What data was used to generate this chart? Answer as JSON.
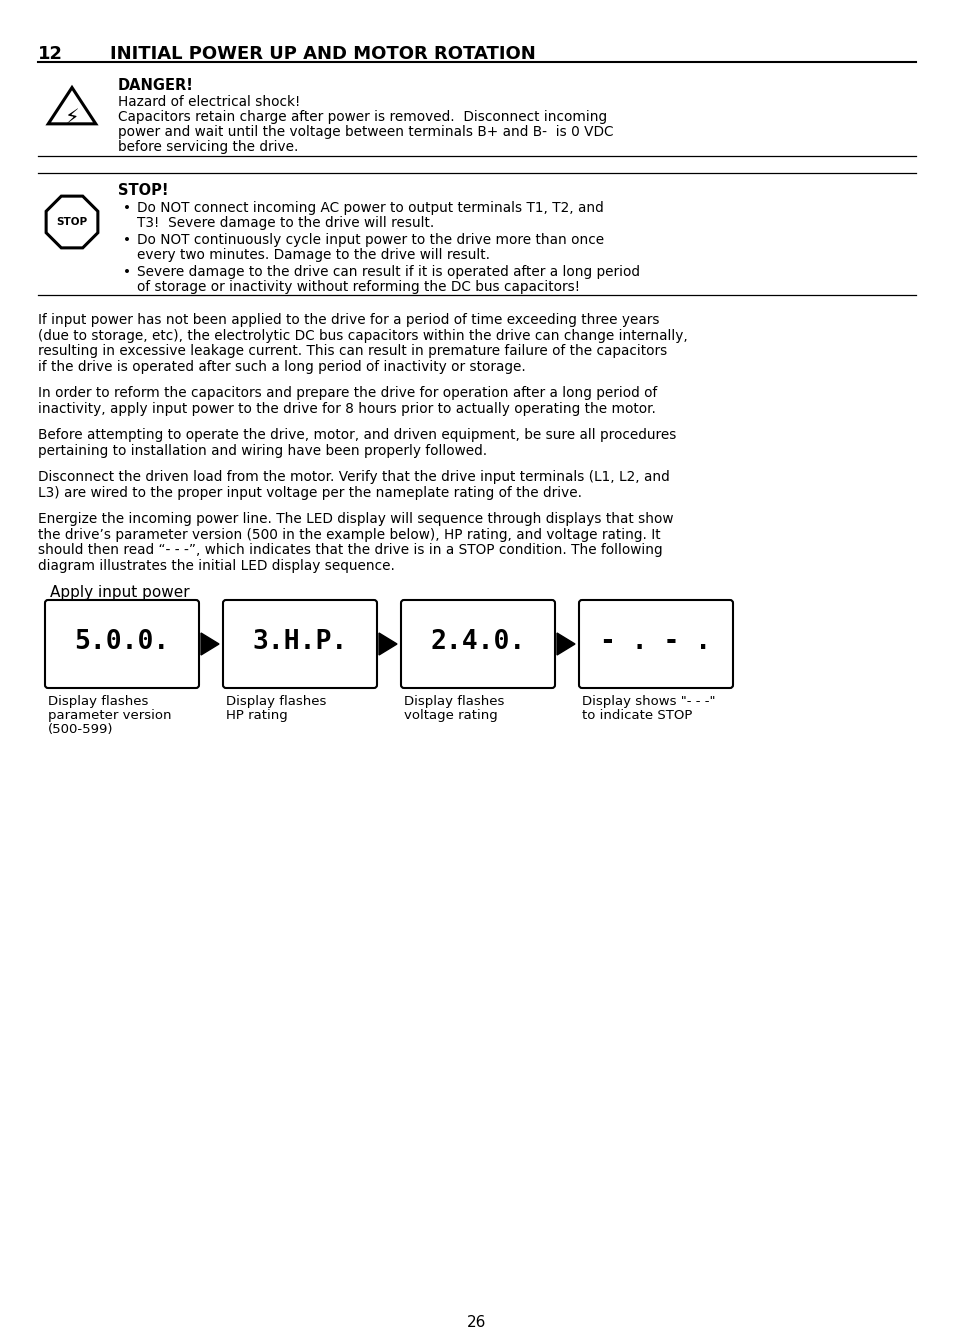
{
  "title_num": "12",
  "title_text": "INITIAL POWER UP AND MOTOR ROTATION",
  "danger_label": "DANGER!",
  "danger_line1": "Hazard of electrical shock!",
  "danger_line2": "Capacitors retain charge after power is removed.  Disconnect incoming",
  "danger_line3": "power and wait until the voltage between terminals B+ and B-  is 0 VDC",
  "danger_line4": "before servicing the drive.",
  "stop_label": "STOP!",
  "stop_b1l1": "Do NOT connect incoming AC power to output terminals T1, T2, and",
  "stop_b1l2": "T3!  Severe damage to the drive will result.",
  "stop_b2l1": "Do NOT continuously cycle input power to the drive more than once",
  "stop_b2l2": "every two minutes. Damage to the drive will result.",
  "stop_b3l1": "Severe damage to the drive can result if it is operated after a long period",
  "stop_b3l2": "of storage or inactivity without reforming the DC bus capacitors!",
  "para1": [
    "If input power has not been applied to the drive for a period of time exceeding three years",
    "(due to storage, etc), the electrolytic DC bus capacitors within the drive can change internally,",
    "resulting in excessive leakage current. This can result in premature failure of the capacitors",
    "if the drive is operated after such a long period of inactivity or storage."
  ],
  "para2": [
    "In order to reform the capacitors and prepare the drive for operation after a long period of",
    "inactivity, apply input power to the drive for 8 hours prior to actually operating the motor."
  ],
  "para3": [
    "Before attempting to operate the drive, motor, and driven equipment, be sure all procedures",
    "pertaining to installation and wiring have been properly followed."
  ],
  "para4": [
    "Disconnect the driven load from the motor. Verify that the drive input terminals (L1, L2, and",
    "L3) are wired to the proper input voltage per the nameplate rating of the drive."
  ],
  "para5": [
    "Energize the incoming power line. The LED display will sequence through displays that show",
    "the drive’s parameter version (500 in the example below), HP rating, and voltage rating. It",
    "should then read “- - -”, which indicates that the drive is in a STOP condition. The following",
    "diagram illustrates the initial LED display sequence."
  ],
  "apply_label": "Apply input power",
  "disp_texts": [
    "5.0.0.",
    "3.H.P.",
    "2.4.0.",
    "- . - ."
  ],
  "disp_labels": [
    [
      "Display flashes",
      "parameter version",
      "(500-599)"
    ],
    [
      "Display flashes",
      "HP rating"
    ],
    [
      "Display flashes",
      "voltage rating"
    ],
    [
      "Display shows \"- - -\"",
      "to indicate STOP"
    ]
  ],
  "page_num": "26",
  "bg_color": "#ffffff",
  "M": 38,
  "RM": 916,
  "fs_body": 9.8,
  "fs_title": 13,
  "lh": 15.5
}
